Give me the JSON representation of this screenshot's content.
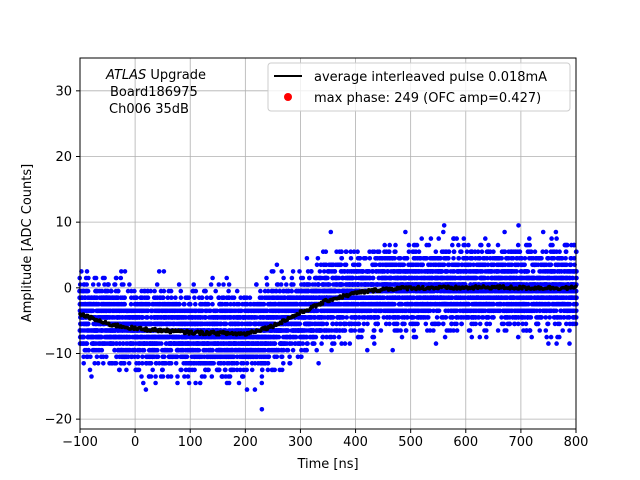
{
  "chart_data": {
    "type": "scatter",
    "xlabel": "Time [ns]",
    "ylabel": "Amplitude [ADC Counts]",
    "xlim": [
      -100,
      800
    ],
    "ylim": [
      -21.5,
      35
    ],
    "xticks": [
      -100,
      0,
      100,
      200,
      300,
      400,
      500,
      600,
      700,
      800
    ],
    "yticks": [
      -20,
      -10,
      0,
      10,
      20,
      30
    ],
    "grid": true,
    "legend_position": "top-right",
    "annotation": {
      "italic": "ATLAS",
      "line1_rest": " Upgrade",
      "line2": "Board186975",
      "line3": "Ch006 35dB"
    },
    "series": [
      {
        "name": "average interleaved pulse 0.018mA",
        "kind": "line",
        "color": "#000000",
        "x": [
          -100,
          -50,
          0,
          50,
          100,
          150,
          200,
          250,
          300,
          350,
          400,
          450,
          500,
          550,
          600,
          650,
          700,
          750,
          800
        ],
        "y": [
          -4,
          -5.5,
          -6.2,
          -6.5,
          -6.8,
          -6.9,
          -7.0,
          -5.8,
          -3.8,
          -1.9,
          -0.8,
          -0.2,
          0,
          0,
          0,
          0.1,
          0,
          0,
          0
        ]
      },
      {
        "name": "max phase: 249 (OFC amp=0.427)",
        "kind": "marker",
        "color": "#ff0000",
        "points": []
      },
      {
        "kind": "scatter",
        "color": "#0000ff",
        "description_values": {
          "sample_levels": [
            -17.5,
            -16.5,
            -15.5,
            -14.5,
            -13.5,
            -12.5,
            -11.5,
            -10.5,
            -9.5,
            -8.5,
            -7.5,
            -6.5,
            -5.5,
            -4.5,
            -3.5,
            -2.5,
            -1.5,
            -0.5,
            0.5,
            1.5,
            2.5,
            3.5,
            4.5,
            5.5,
            6.5,
            7.5,
            8.5,
            9.5
          ],
          "spread_before_200": [
            -16,
            4
          ],
          "spread_after_500": [
            -10,
            9
          ],
          "min_point": [
            230,
            -18.5
          ]
        }
      }
    ]
  }
}
